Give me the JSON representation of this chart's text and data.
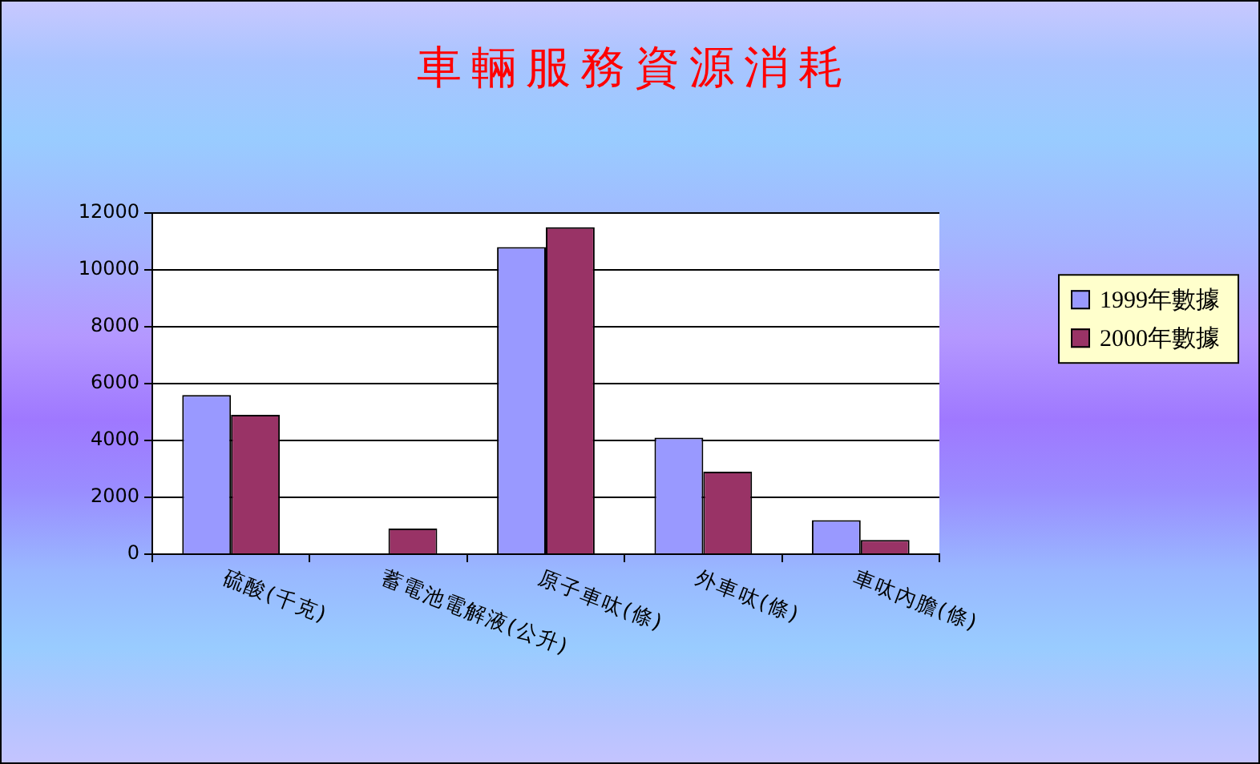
{
  "chart_data": {
    "type": "bar",
    "title": "車輛服務資源消耗",
    "categories": [
      "硫酸(千克)",
      "蓄電池電解液(公升)",
      "原子車呔(條)",
      "外車呔(條)",
      "車呔內膽(條)"
    ],
    "series": [
      {
        "name": "1999年數據",
        "color": "#9999ff",
        "values": [
          5600,
          0,
          10800,
          4100,
          1200
        ]
      },
      {
        "name": "2000年數據",
        "color": "#993366",
        "values": [
          4900,
          900,
          11500,
          2900,
          500
        ]
      }
    ],
    "ylim": [
      0,
      12000
    ],
    "yticks": [
      0,
      2000,
      4000,
      6000,
      8000,
      10000,
      12000
    ],
    "grid": "y",
    "legend": "right"
  }
}
